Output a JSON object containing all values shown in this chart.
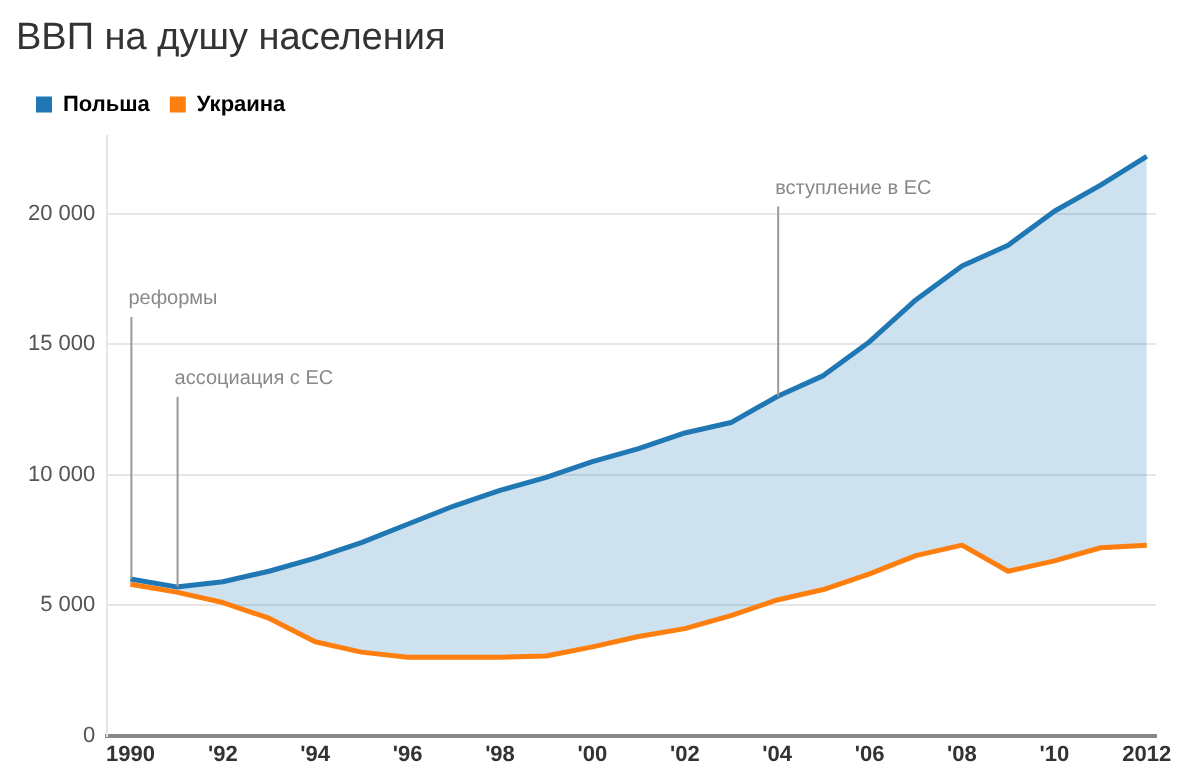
{
  "chart_data": {
    "type": "line",
    "title": "ВВП на душу населения",
    "x": [
      1990,
      1991,
      1992,
      1993,
      1994,
      1995,
      1996,
      1997,
      1998,
      1999,
      2000,
      2001,
      2002,
      2003,
      2004,
      2005,
      2006,
      2007,
      2008,
      2009,
      2010,
      2011,
      2012
    ],
    "series": [
      {
        "name": "Польша",
        "color": "#1f77b4",
        "type": "area",
        "values": [
          6000,
          5700,
          5900,
          6300,
          6800,
          7400,
          8100,
          8800,
          9400,
          9900,
          10500,
          11000,
          11600,
          12000,
          13000,
          13800,
          15100,
          16700,
          18000,
          18800,
          20100,
          21100,
          22200
        ]
      },
      {
        "name": "Украина",
        "color": "#ff7f0e",
        "type": "line",
        "values": [
          5800,
          5500,
          5100,
          4500,
          3600,
          3200,
          3000,
          3000,
          3000,
          3050,
          3400,
          3800,
          4100,
          4600,
          5200,
          5600,
          6200,
          6900,
          7300,
          6300,
          6700,
          7200,
          7300
        ]
      }
    ],
    "xlim": [
      1989.5,
      2012.2
    ],
    "xticks": [
      {
        "value": 1990,
        "label": "1990"
      },
      {
        "value": 1992,
        "label": "'92"
      },
      {
        "value": 1994,
        "label": "'94"
      },
      {
        "value": 1996,
        "label": "'96"
      },
      {
        "value": 1998,
        "label": "'98"
      },
      {
        "value": 2000,
        "label": "'00"
      },
      {
        "value": 2002,
        "label": "'02"
      },
      {
        "value": 2004,
        "label": "'04"
      },
      {
        "value": 2006,
        "label": "'06"
      },
      {
        "value": 2008,
        "label": "'08"
      },
      {
        "value": 2010,
        "label": "'10"
      },
      {
        "value": 2012,
        "label": "2012"
      }
    ],
    "ylim": [
      0,
      23000
    ],
    "yticks": [
      {
        "value": 0,
        "label": "0"
      },
      {
        "value": 5000,
        "label": "5 000"
      },
      {
        "value": 10000,
        "label": "10 000"
      },
      {
        "value": 15000,
        "label": "15 000"
      },
      {
        "value": 20000,
        "label": "20 000"
      }
    ],
    "annotations": [
      {
        "text": "реформы",
        "x": 1990,
        "y": 6000
      },
      {
        "text": "ассоциация с ЕС",
        "x": 1991,
        "y": 5700
      },
      {
        "text": "вступление в ЕС",
        "x": 2004,
        "y": 13000
      }
    ],
    "grid": "y",
    "legend": "top left",
    "marker": "none",
    "line_style": "solid"
  }
}
